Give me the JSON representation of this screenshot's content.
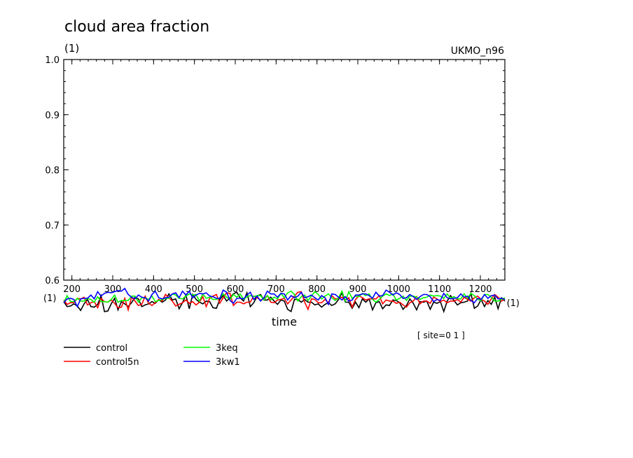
{
  "chart_data": {
    "type": "line",
    "title": "cloud area fraction",
    "y_unit": "(1)",
    "model": "UKMO_n96",
    "xlabel": "time",
    "x_unit_left": "(1)",
    "x_unit_right": "(1)",
    "site": "[ site=0 1 ]",
    "ylim": [
      0.6,
      1.0
    ],
    "yticks": [
      "0.6",
      "0.7",
      "0.8",
      "0.9",
      "1.0"
    ],
    "xlim": [
      180,
      1260
    ],
    "xticks": [
      "200",
      "300",
      "400",
      "500",
      "600",
      "700",
      "800",
      "900",
      "1000",
      "1100",
      "1200"
    ],
    "series": [
      {
        "name": "control",
        "color": "#000000",
        "values": [
          0.561,
          0.552,
          0.553,
          0.557,
          0.553,
          0.545,
          0.557,
          0.565,
          0.552,
          0.551,
          0.556,
          0.572,
          0.543,
          0.544,
          0.557,
          0.567,
          0.546,
          0.561,
          0.557,
          0.552,
          0.559,
          0.569,
          0.566,
          0.552,
          0.555,
          0.557,
          0.561,
          0.558,
          0.565,
          0.56,
          0.564,
          0.575,
          0.564,
          0.566,
          0.548,
          0.559,
          0.573,
          0.548,
          0.574,
          0.565,
          0.56,
          0.557,
          0.562,
          0.561,
          0.55,
          0.549,
          0.565,
          0.572,
          0.562,
          0.568,
          0.575,
          0.578,
          0.568,
          0.562,
          0.577,
          0.552,
          0.559,
          0.571,
          0.574,
          0.564,
          0.564,
          0.569,
          0.562,
          0.556,
          0.564,
          0.562,
          0.547,
          0.543,
          0.565,
          0.565,
          0.56,
          0.565,
          0.56,
          0.56,
          0.555,
          0.557,
          0.551,
          0.556,
          0.559,
          0.554,
          0.557,
          0.565,
          0.577,
          0.56,
          0.56,
          0.549,
          0.56,
          0.55,
          0.566,
          0.56,
          0.566,
          0.546,
          0.559,
          0.561,
          0.548,
          0.555,
          0.554,
          0.564,
          0.563,
          0.559,
          0.547,
          0.554,
          0.566,
          0.558,
          0.546,
          0.561,
          0.56,
          0.562,
          0.547,
          0.56,
          0.558,
          0.561,
          0.543,
          0.562,
          0.572,
          0.563,
          0.555,
          0.559,
          0.56,
          0.562,
          0.576,
          0.549,
          0.553,
          0.565,
          0.552,
          0.563,
          0.556,
          0.569,
          0.548,
          0.568,
          0.562
        ]
      },
      {
        "name": "control5n",
        "color": "#ff0000",
        "values": [
          0.564,
          0.556,
          0.559,
          0.559,
          0.567,
          0.566,
          0.569,
          0.555,
          0.559,
          0.561,
          0.55,
          0.567,
          0.561,
          0.56,
          0.564,
          0.558,
          0.55,
          0.551,
          0.567,
          0.546,
          0.569,
          0.562,
          0.554,
          0.556,
          0.571,
          0.558,
          0.554,
          0.559,
          0.565,
          0.562,
          0.574,
          0.568,
          0.562,
          0.553,
          0.556,
          0.559,
          0.564,
          0.558,
          0.561,
          0.555,
          0.56,
          0.57,
          0.552,
          0.567,
          0.571,
          0.574,
          0.558,
          0.568,
          0.577,
          0.576,
          0.554,
          0.56,
          0.56,
          0.557,
          0.56,
          0.56,
          0.571,
          0.568,
          0.564,
          0.566,
          0.572,
          0.56,
          0.559,
          0.564,
          0.565,
          0.567,
          0.557,
          0.564,
          0.571,
          0.578,
          0.579,
          0.56,
          0.547,
          0.566,
          0.565,
          0.559,
          0.559,
          0.565,
          0.559,
          0.572,
          0.566,
          0.567,
          0.569,
          0.563,
          0.568,
          0.551,
          0.565,
          0.572,
          0.568,
          0.564,
          0.566,
          0.566,
          0.566,
          0.572,
          0.557,
          0.564,
          0.562,
          0.562,
          0.558,
          0.56,
          0.555,
          0.551,
          0.559,
          0.562,
          0.57,
          0.557,
          0.562,
          0.562,
          0.558,
          0.569,
          0.566,
          0.561,
          0.564,
          0.559,
          0.562,
          0.562,
          0.565,
          0.56,
          0.569,
          0.565,
          0.562,
          0.568,
          0.571,
          0.565,
          0.562,
          0.556,
          0.566,
          0.574,
          0.569,
          0.562,
          0.566
        ]
      },
      {
        "name": "3keq",
        "color": "#00ff00",
        "values": [
          0.559,
          0.572,
          0.561,
          0.561,
          0.567,
          0.562,
          0.562,
          0.567,
          0.565,
          0.56,
          0.57,
          0.561,
          0.561,
          0.56,
          0.565,
          0.573,
          0.56,
          0.563,
          0.563,
          0.563,
          0.571,
          0.571,
          0.56,
          0.568,
          0.568,
          0.565,
          0.571,
          0.561,
          0.563,
          0.565,
          0.567,
          0.567,
          0.575,
          0.573,
          0.567,
          0.566,
          0.571,
          0.575,
          0.573,
          0.574,
          0.562,
          0.575,
          0.567,
          0.569,
          0.565,
          0.565,
          0.568,
          0.575,
          0.569,
          0.565,
          0.574,
          0.569,
          0.575,
          0.565,
          0.57,
          0.572,
          0.57,
          0.572,
          0.572,
          0.564,
          0.572,
          0.564,
          0.569,
          0.566,
          0.576,
          0.568,
          0.577,
          0.58,
          0.574,
          0.562,
          0.57,
          0.573,
          0.563,
          0.571,
          0.579,
          0.574,
          0.566,
          0.571,
          0.575,
          0.568,
          0.563,
          0.568,
          0.58,
          0.562,
          0.579,
          0.567,
          0.571,
          0.57,
          0.576,
          0.572,
          0.575,
          0.565,
          0.56,
          0.565,
          0.571,
          0.575,
          0.572,
          0.575,
          0.564,
          0.567,
          0.571,
          0.563,
          0.571,
          0.571,
          0.569,
          0.565,
          0.568,
          0.569,
          0.573,
          0.571,
          0.572,
          0.571,
          0.567,
          0.575,
          0.567,
          0.57,
          0.566,
          0.566,
          0.575,
          0.567,
          0.576,
          0.572,
          0.565,
          0.563,
          0.574,
          0.574,
          0.569,
          0.562,
          0.562,
          0.565,
          0.568
        ]
      },
      {
        "name": "3kw1",
        "color": "#0000ff",
        "values": [
          0.559,
          0.566,
          0.567,
          0.565,
          0.552,
          0.566,
          0.567,
          0.567,
          0.573,
          0.566,
          0.579,
          0.571,
          0.576,
          0.578,
          0.577,
          0.579,
          0.581,
          0.58,
          0.585,
          0.574,
          0.569,
          0.566,
          0.573,
          0.569,
          0.568,
          0.562,
          0.574,
          0.58,
          0.568,
          0.566,
          0.568,
          0.569,
          0.575,
          0.577,
          0.568,
          0.58,
          0.573,
          0.58,
          0.568,
          0.573,
          0.576,
          0.575,
          0.577,
          0.571,
          0.57,
          0.567,
          0.567,
          0.582,
          0.578,
          0.563,
          0.558,
          0.567,
          0.567,
          0.566,
          0.573,
          0.578,
          0.565,
          0.571,
          0.562,
          0.568,
          0.58,
          0.575,
          0.575,
          0.569,
          0.576,
          0.575,
          0.564,
          0.572,
          0.568,
          0.571,
          0.578,
          0.568,
          0.57,
          0.573,
          0.568,
          0.564,
          0.572,
          0.568,
          0.556,
          0.575,
          0.574,
          0.569,
          0.564,
          0.57,
          0.562,
          0.564,
          0.573,
          0.573,
          0.575,
          0.575,
          0.572,
          0.567,
          0.578,
          0.571,
          0.572,
          0.582,
          0.578,
          0.573,
          0.577,
          0.574,
          0.567,
          0.568,
          0.574,
          0.57,
          0.565,
          0.57,
          0.574,
          0.574,
          0.57,
          0.561,
          0.565,
          0.563,
          0.576,
          0.568,
          0.566,
          0.567,
          0.568,
          0.575,
          0.569,
          0.571,
          0.563,
          0.559,
          0.567,
          0.565,
          0.574,
          0.567,
          0.572,
          0.573,
          0.566,
          0.567,
          0.565
        ]
      }
    ]
  }
}
